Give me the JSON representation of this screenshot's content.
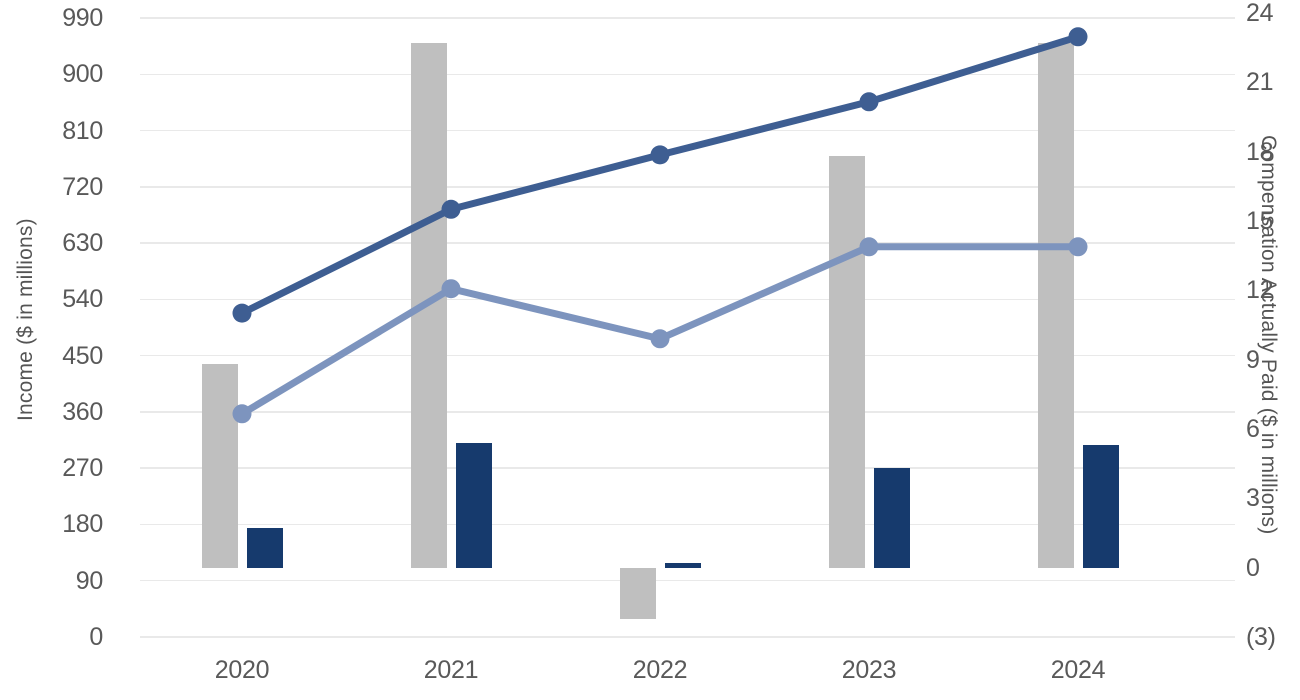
{
  "chart_data": {
    "type": "combo-bar-line",
    "title": "",
    "categories": [
      "2020",
      "2021",
      "2022",
      "2023",
      "2024"
    ],
    "legend": false,
    "grid": true,
    "background_color": "#ffffff",
    "gridline_color": "#e9e9e9",
    "tick_text_color": "#595959",
    "left_axis": {
      "label": "Income ($ in millions)",
      "min": 0,
      "max": 990,
      "tick_step": 90,
      "ticks": [
        {
          "v": 990,
          "label": "990"
        },
        {
          "v": 900,
          "label": "900"
        },
        {
          "v": 810,
          "label": "810"
        },
        {
          "v": 720,
          "label": "720"
        },
        {
          "v": 630,
          "label": "630"
        },
        {
          "v": 540,
          "label": "540"
        },
        {
          "v": 450,
          "label": "450"
        },
        {
          "v": 360,
          "label": "360"
        },
        {
          "v": 270,
          "label": "270"
        },
        {
          "v": 180,
          "label": "180"
        },
        {
          "v": 90,
          "label": "90"
        },
        {
          "v": 0,
          "label": "0"
        }
      ]
    },
    "right_axis": {
      "label": "Compensation Actually Paid ($ in millions)",
      "min": -3,
      "max": 24,
      "tick_step": 3,
      "ticks": [
        {
          "v": 24,
          "label": "24"
        },
        {
          "v": 21,
          "label": "21"
        },
        {
          "v": 18,
          "label": "18"
        },
        {
          "v": 15,
          "label": "15"
        },
        {
          "v": 12,
          "label": "12"
        },
        {
          "v": 9,
          "label": "9"
        },
        {
          "v": 6,
          "label": "6"
        },
        {
          "v": 3,
          "label": "3"
        },
        {
          "v": 0,
          "label": "0"
        },
        {
          "v": -3,
          "label": "(3)"
        }
      ]
    },
    "series": [
      {
        "name": "gray-bars",
        "type": "bar",
        "axis": "right",
        "color": "#bfbfbf",
        "values": [
          8.8,
          22.7,
          -2.2,
          17.8,
          22.7
        ]
      },
      {
        "name": "navy-bars",
        "type": "bar",
        "axis": "right",
        "color": "#163a6d",
        "values": [
          1.7,
          5.4,
          0.2,
          4.3,
          5.3
        ]
      },
      {
        "name": "dark-blue-line",
        "type": "line",
        "axis": "left",
        "color": "#3e5e92",
        "values": [
          518,
          684,
          771,
          856,
          960
        ]
      },
      {
        "name": "light-blue-line",
        "type": "line",
        "axis": "left",
        "color": "#7d94be",
        "values": [
          357,
          557,
          477,
          624,
          624
        ]
      }
    ]
  }
}
